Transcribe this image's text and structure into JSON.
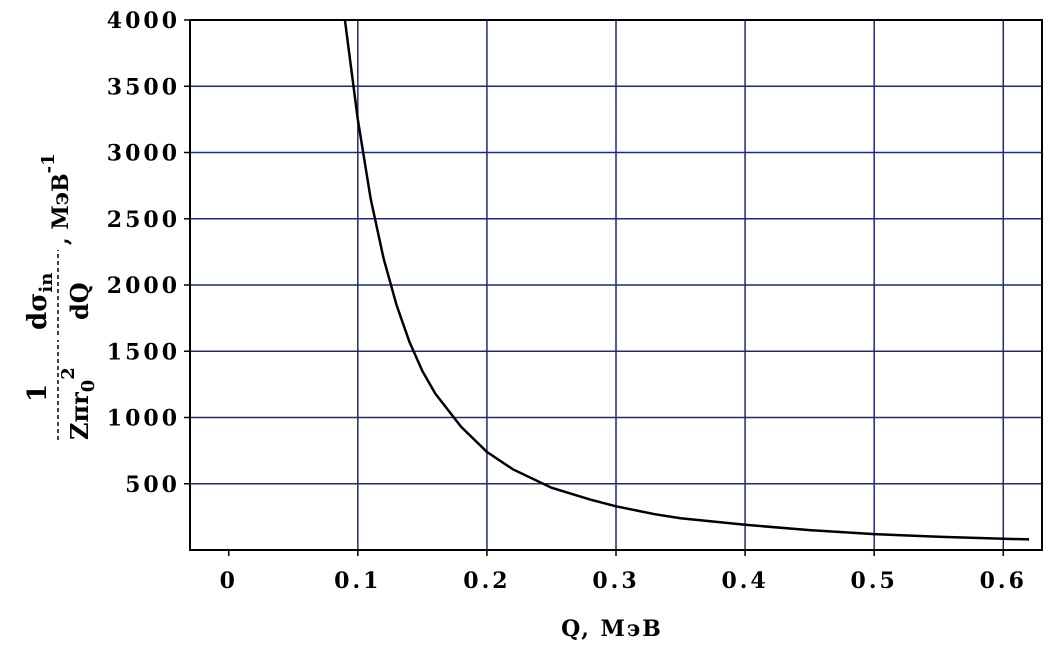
{
  "chart_data": {
    "type": "line",
    "xlabel": "Q, МэВ",
    "ylabel": {
      "numerator": "1",
      "denominator": "Zπr",
      "denominator_sub": "0",
      "denominator_sup": "2",
      "deriv_num": "dσ",
      "deriv_num_sub": "in",
      "deriv_den": "dQ",
      "unit": ", МэВ",
      "unit_sup": "-1"
    },
    "xlim": [
      -0.03,
      0.63
    ],
    "ylim": [
      0,
      4000
    ],
    "x_ticks": [
      0,
      0.1,
      0.2,
      0.3,
      0.4,
      0.5,
      0.6
    ],
    "x_tick_labels": [
      "0",
      "0.1",
      "0.2",
      "0.3",
      "0.4",
      "0.5",
      "0.6"
    ],
    "y_ticks": [
      500,
      1000,
      1500,
      2000,
      2500,
      3000,
      3500,
      4000
    ],
    "y_tick_labels": [
      "500",
      "1000",
      "1500",
      "2000",
      "2500",
      "3000",
      "3500",
      "4000"
    ],
    "grid": true,
    "colors": {
      "grid": "#1c2a78",
      "line": "#000000",
      "frame": "#000000"
    },
    "series": [
      {
        "x": [
          0.09,
          0.1,
          0.11,
          0.12,
          0.13,
          0.14,
          0.15,
          0.16,
          0.18,
          0.2,
          0.22,
          0.25,
          0.28,
          0.3,
          0.33,
          0.35,
          0.4,
          0.45,
          0.5,
          0.55,
          0.6,
          0.62
        ],
        "y": [
          4000,
          3250,
          2650,
          2200,
          1850,
          1570,
          1350,
          1180,
          930,
          740,
          610,
          470,
          380,
          330,
          270,
          240,
          190,
          150,
          120,
          100,
          85,
          80
        ]
      }
    ]
  }
}
